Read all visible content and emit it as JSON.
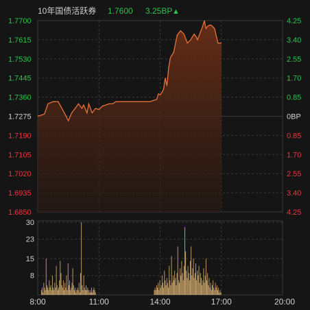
{
  "header": {
    "title": "10年国债活跃券",
    "price": "1.7600",
    "change": "3.25BP",
    "change_arrow": "▲"
  },
  "colors": {
    "background": "#151515",
    "grid": "#3a3a3a",
    "price_line": "#e8733a",
    "fill_top": "#6b2f16",
    "up": "#2fc24c",
    "down": "#e53b3b",
    "neutral": "#d0d0d0",
    "volume": "#c9a46a"
  },
  "chart_data": [
    {
      "type": "area",
      "name": "price",
      "y_left_ticks": [
        "1.7700",
        "1.7615",
        "1.7530",
        "1.7445",
        "1.7360",
        "1.7275",
        "1.7190",
        "1.7105",
        "1.7020",
        "1.6935",
        "1.6850"
      ],
      "y_right_ticks": [
        "4.25",
        "3.40",
        "2.55",
        "1.70",
        "0.85",
        "0BP",
        "0.85",
        "1.70",
        "2.55",
        "3.40",
        "4.25"
      ],
      "ylim": [
        1.685,
        1.77
      ],
      "baseline": 1.7275,
      "x_range_minutes": [
        480,
        1200
      ],
      "x": [
        "08:00",
        "08:20",
        "08:30",
        "08:45",
        "09:00",
        "09:20",
        "09:30",
        "09:40",
        "10:00",
        "10:10",
        "10:15",
        "10:25",
        "10:30",
        "10:40",
        "10:50",
        "11:00",
        "11:10",
        "11:20",
        "11:30",
        "11:40",
        "11:50",
        "12:00",
        "12:30",
        "13:00",
        "13:30",
        "13:40",
        "13:50",
        "13:55",
        "14:00",
        "14:05",
        "14:10",
        "14:15",
        "14:20",
        "14:25",
        "14:30",
        "14:40",
        "14:50",
        "15:00",
        "15:10",
        "15:20",
        "15:30",
        "15:40",
        "15:45",
        "15:50",
        "16:00",
        "16:05",
        "16:10",
        "16:15",
        "16:20",
        "16:25",
        "16:30",
        "16:40",
        "16:50",
        "17:00"
      ],
      "values": [
        1.7275,
        1.7285,
        1.733,
        1.734,
        1.734,
        1.7285,
        1.7255,
        1.729,
        1.733,
        1.731,
        1.7325,
        1.729,
        1.733,
        1.729,
        1.731,
        1.7305,
        1.732,
        1.7325,
        1.733,
        1.733,
        1.734,
        1.734,
        1.734,
        1.734,
        1.734,
        1.7345,
        1.735,
        1.7375,
        1.737,
        1.738,
        1.7395,
        1.7445,
        1.741,
        1.749,
        1.7535,
        1.756,
        1.7635,
        1.7655,
        1.764,
        1.76,
        1.7615,
        1.764,
        1.763,
        1.7615,
        1.7655,
        1.7675,
        1.77,
        1.7665,
        1.7675,
        1.768,
        1.768,
        1.7665,
        1.76,
        1.76
      ]
    },
    {
      "type": "bar",
      "name": "volume",
      "y_ticks": [
        "30",
        "23",
        "15",
        "8"
      ],
      "ylim": [
        0,
        30
      ],
      "x_ticks": [
        "8:00",
        "11:00",
        "14:00",
        "17:00",
        "20:00"
      ],
      "values": [
        2,
        3,
        1,
        5,
        3,
        2,
        15,
        4,
        3,
        2,
        6,
        3,
        4,
        2,
        8,
        3,
        2,
        5,
        3,
        12,
        4,
        2,
        3,
        6,
        14,
        9,
        4,
        3,
        6,
        2,
        5,
        3,
        8,
        2,
        13,
        4,
        6,
        2,
        3,
        5,
        11,
        4,
        2,
        3,
        1,
        2,
        3,
        2,
        5,
        1,
        9,
        30,
        4,
        2,
        8,
        3,
        2,
        4,
        2,
        3,
        2,
        1,
        2,
        1,
        3,
        1,
        2,
        3,
        2,
        1,
        0,
        0,
        0,
        0,
        0,
        0,
        0,
        0,
        0,
        0,
        0,
        0,
        0,
        0,
        0,
        0,
        0,
        0,
        0,
        0,
        0,
        0,
        0,
        0,
        0,
        0,
        0,
        0,
        0,
        0,
        0,
        0,
        0,
        0,
        0,
        0,
        0,
        0,
        0,
        0,
        0,
        0,
        0,
        0,
        0,
        0,
        0,
        0,
        0,
        0,
        0,
        0,
        0,
        0,
        0,
        0,
        0,
        0,
        0,
        0,
        0,
        0,
        0,
        0,
        0,
        0,
        0,
        0,
        0,
        0,
        0,
        0,
        0,
        0,
        2,
        3,
        2,
        4,
        3,
        5,
        2,
        6,
        3,
        4,
        8,
        5,
        3,
        10,
        6,
        4,
        7,
        5,
        3,
        12,
        6,
        4,
        16,
        5,
        8,
        6,
        10,
        7,
        4,
        9,
        20,
        6,
        5,
        11,
        8,
        14,
        9,
        6,
        12,
        28,
        18,
        10,
        7,
        12,
        9,
        6,
        14,
        20,
        8,
        11,
        15,
        7,
        9,
        13,
        6,
        10,
        8,
        12,
        5,
        9,
        7,
        4,
        6,
        11,
        5,
        8,
        15,
        6,
        9,
        4,
        7,
        3,
        5,
        2,
        4,
        6,
        3,
        2,
        5,
        3,
        4,
        2,
        3,
        1,
        2,
        1
      ]
    }
  ]
}
